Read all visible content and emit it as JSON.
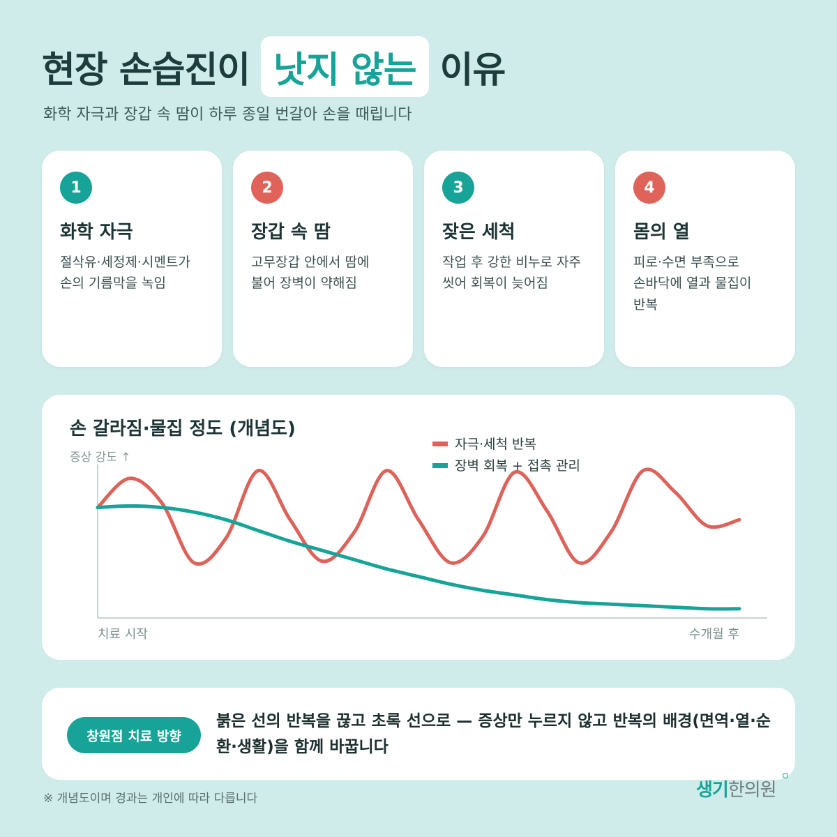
{
  "header": {
    "title_before": "현장 손습진이",
    "title_highlight": "낫지 않는",
    "title_after": "이유",
    "subtitle": "화학 자극과 장갑 속 땀이 하루 종일 번갈아 손을 때립니다"
  },
  "cards": [
    {
      "num": "1",
      "title": "화학 자극",
      "desc": "절삭유·세정제·시멘트가 손의 기름막을 녹임",
      "color": "#17a398"
    },
    {
      "num": "2",
      "title": "장갑 속 땀",
      "desc": "고무장갑 안에서 땀에 불어 장벽이 약해짐",
      "color": "#e06359"
    },
    {
      "num": "3",
      "title": "잦은 세척",
      "desc": "작업 후 강한 비누로 자주 씻어 회복이 늦어짐",
      "color": "#17a398"
    },
    {
      "num": "4",
      "title": "몸의 열",
      "desc": "피로·수면 부족으로 손바닥에 열과 물집이 반복",
      "color": "#e06359"
    }
  ],
  "chart_data": {
    "type": "line",
    "title": "손 갈라짐·물집 정도 (개념도)",
    "ylabel": "증상 강도 ↑",
    "xlabel_start": "치료 시작",
    "xlabel_end": "수개월 후",
    "x": [
      0,
      1,
      2,
      3,
      4,
      5,
      6,
      7,
      8,
      9,
      10,
      11,
      12,
      13,
      14,
      15,
      16,
      17,
      18,
      19,
      20
    ],
    "ylim": [
      0,
      100
    ],
    "series": [
      {
        "name": "자극·세척 반복",
        "color": "#dc625a",
        "values": [
          72,
          91,
          75,
          36,
          52,
          96,
          64,
          37,
          56,
          96,
          64,
          36,
          53,
          95,
          70,
          36,
          56,
          96,
          82,
          60,
          64
        ]
      },
      {
        "name": "장벽 회복 + 접촉 관리",
        "color": "#17a398",
        "values": [
          72,
          73,
          72,
          69,
          64,
          57,
          50,
          44,
          38,
          32,
          27,
          22,
          18,
          15,
          12,
          10,
          9,
          8,
          7,
          6,
          6
        ]
      }
    ],
    "grid": false,
    "legend": "top-center"
  },
  "bottom": {
    "pill_label": "창원점 치료 방향",
    "text": "붉은 선의 반복을 끊고 초록 선으로 — 증상만 누르지 않고 반복의 배경(면역·열·순환·생활)을 함께 바꿉니다"
  },
  "footnote": "※ 개념도이며 경과는 개인에 따라 다릅니다",
  "logo": {
    "accent": "생기",
    "rest": "한의원"
  }
}
